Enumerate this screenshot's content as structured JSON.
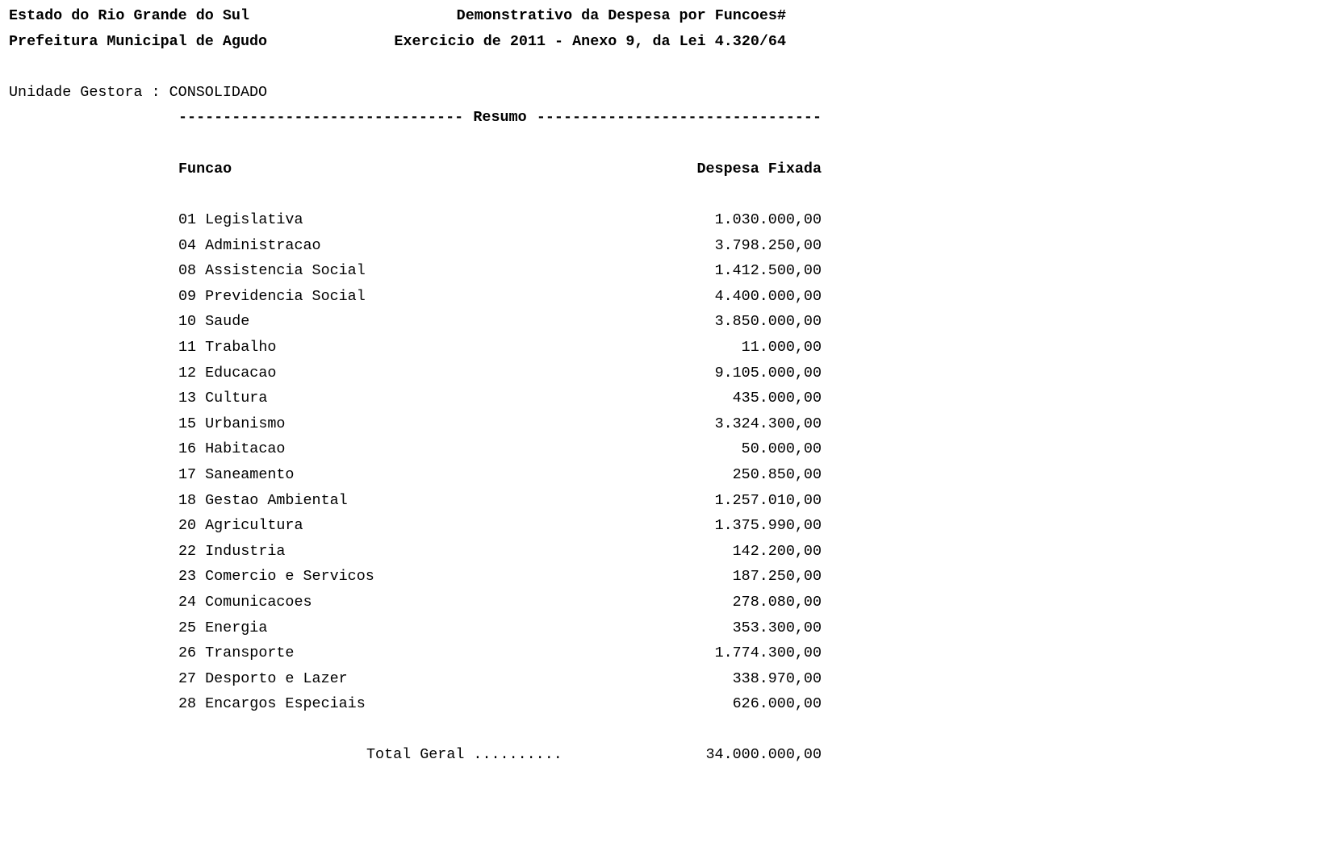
{
  "header": {
    "state": "Estado do Rio Grande do Sul",
    "municipality": "Prefeitura Municipal de Agudo",
    "title": "Demonstrativo da Despesa por Funcoes#",
    "subtitle": "Exercicio de 2011 - Anexo 9, da Lei 4.320/64"
  },
  "unit": "Unidade Gestora : CONSOLIDADO",
  "section_title": "Resumo",
  "table": {
    "columns": [
      "Funcao",
      "Despesa Fixada"
    ],
    "rows": [
      {
        "funcao": "01 Legislativa",
        "valor": "1.030.000,00"
      },
      {
        "funcao": "04 Administracao",
        "valor": "3.798.250,00"
      },
      {
        "funcao": "08 Assistencia Social",
        "valor": "1.412.500,00"
      },
      {
        "funcao": "09 Previdencia Social",
        "valor": "4.400.000,00"
      },
      {
        "funcao": "10 Saude",
        "valor": "3.850.000,00"
      },
      {
        "funcao": "11 Trabalho",
        "valor": "11.000,00"
      },
      {
        "funcao": "12 Educacao",
        "valor": "9.105.000,00"
      },
      {
        "funcao": "13 Cultura",
        "valor": "435.000,00"
      },
      {
        "funcao": "15 Urbanismo",
        "valor": "3.324.300,00"
      },
      {
        "funcao": "16 Habitacao",
        "valor": "50.000,00"
      },
      {
        "funcao": "17 Saneamento",
        "valor": "250.850,00"
      },
      {
        "funcao": "18 Gestao Ambiental",
        "valor": "1.257.010,00"
      },
      {
        "funcao": "20 Agricultura",
        "valor": "1.375.990,00"
      },
      {
        "funcao": "22 Industria",
        "valor": "142.200,00"
      },
      {
        "funcao": "23 Comercio e Servicos",
        "valor": "187.250,00"
      },
      {
        "funcao": "24 Comunicacoes",
        "valor": "278.080,00"
      },
      {
        "funcao": "25 Energia",
        "valor": "353.300,00"
      },
      {
        "funcao": "26 Transporte",
        "valor": "1.774.300,00"
      },
      {
        "funcao": "27 Desporto e Lazer",
        "valor": "338.970,00"
      },
      {
        "funcao": "28 Encargos Especiais",
        "valor": "626.000,00"
      }
    ],
    "total_label": "Total Geral ..........",
    "total_value": "34.000.000,00"
  }
}
